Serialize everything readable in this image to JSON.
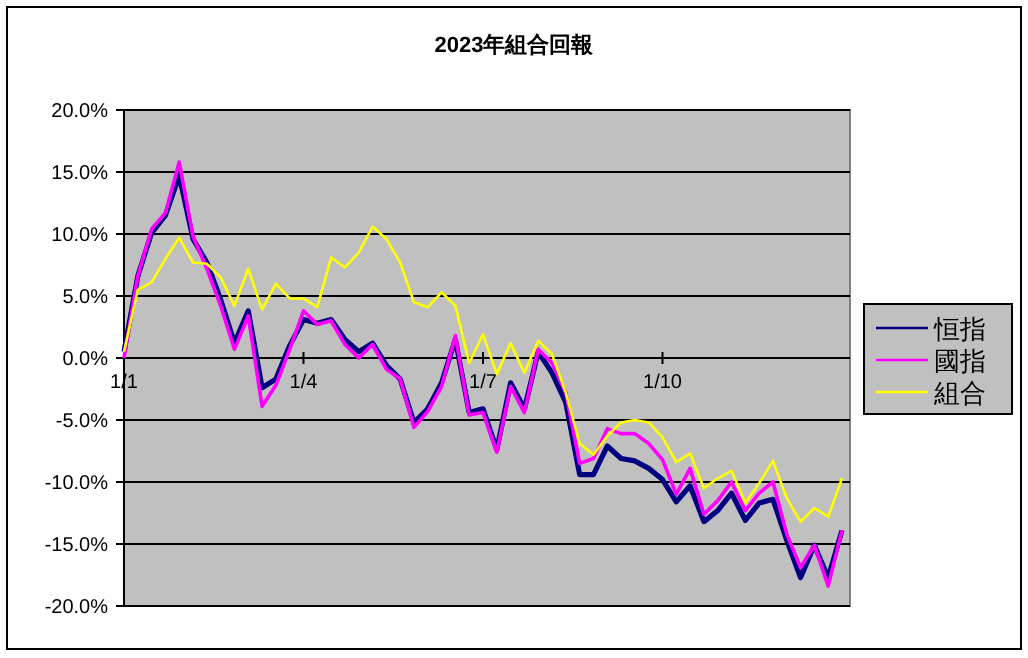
{
  "chart_data": {
    "type": "line",
    "title": "2023年組合回報",
    "categories": [
      "1/1",
      null,
      null,
      null,
      null,
      null,
      null,
      null,
      null,
      null,
      null,
      null,
      null,
      "1/4",
      null,
      null,
      null,
      null,
      null,
      null,
      null,
      null,
      null,
      null,
      null,
      null,
      "1/7",
      null,
      null,
      null,
      null,
      null,
      null,
      null,
      null,
      null,
      null,
      null,
      null,
      "1/10",
      null,
      null,
      null,
      null,
      null,
      null,
      null,
      null,
      null,
      null,
      null,
      null,
      null
    ],
    "series": [
      {
        "name": "恒指",
        "color": "#000080",
        "values": [
          0.5,
          6.6,
          10.1,
          11.5,
          14.7,
          9.6,
          7.7,
          4.7,
          1.2,
          3.8,
          -2.4,
          -1.7,
          1.0,
          3.1,
          2.8,
          3.1,
          1.5,
          0.5,
          1.2,
          -0.6,
          -1.7,
          -5.2,
          -4.1,
          -2.0,
          1.5,
          -4.4,
          -4.1,
          -7.4,
          -2.0,
          -4.1,
          0.5,
          -1.2,
          -3.6,
          -9.4,
          -9.4,
          -7.1,
          -8.1,
          -8.3,
          -8.9,
          -9.8,
          -11.6,
          -10.3,
          -13.2,
          -12.3,
          -10.9,
          -13.1,
          -11.7,
          -11.4,
          -14.7,
          -17.7,
          -15.1,
          -17.7,
          -13.9
        ]
      },
      {
        "name": "國指",
        "color": "#ff00ff",
        "values": [
          0,
          6.6,
          10.4,
          11.7,
          15.8,
          9.8,
          7.2,
          4.2,
          0.7,
          3.4,
          -3.9,
          -2.2,
          0.7,
          3.8,
          2.7,
          3.0,
          1.1,
          0,
          1.1,
          -0.9,
          -1.7,
          -5.6,
          -4.3,
          -2.3,
          1.8,
          -4.6,
          -4.4,
          -7.6,
          -2.3,
          -4.4,
          0.7,
          -0.4,
          -2.8,
          -8.5,
          -8.1,
          -5.7,
          -6.1,
          -6.1,
          -6.9,
          -8.2,
          -11.0,
          -8.9,
          -12.6,
          -11.5,
          -10.0,
          -12.3,
          -10.9,
          -10.0,
          -14.2,
          -16.9,
          -15.1,
          -18.4,
          -13.9
        ]
      },
      {
        "name": "組合",
        "color": "#ffff00",
        "values": [
          0.5,
          5.5,
          6.1,
          8.0,
          9.7,
          7.7,
          7.6,
          6.5,
          4.2,
          7.2,
          3.9,
          6.0,
          4.8,
          4.8,
          4.1,
          8.1,
          7.3,
          8.5,
          10.6,
          9.6,
          7.7,
          4.5,
          4.1,
          5.3,
          4.2,
          -0.4,
          1.9,
          -1.3,
          1.2,
          -1.2,
          1.4,
          0.3,
          -2.8,
          -6.9,
          -7.8,
          -6.3,
          -5.2,
          -5.0,
          -5.2,
          -6.4,
          -8.4,
          -7.7,
          -10.5,
          -9.7,
          -9.1,
          -11.7,
          -10.1,
          -8.3,
          -11.3,
          -13.2,
          -12.1,
          -12.8,
          -9.7
        ]
      }
    ],
    "ylim": [
      -20,
      20
    ],
    "yticks": [
      {
        "value": -20,
        "label": "-20.0%"
      },
      {
        "value": -15,
        "label": "-15.0%"
      },
      {
        "value": -10,
        "label": "-10.0%"
      },
      {
        "value": -5,
        "label": "-5.0%"
      },
      {
        "value": 0,
        "label": "0.0%"
      },
      {
        "value": 5,
        "label": "5.0%"
      },
      {
        "value": 10,
        "label": "10.0%"
      },
      {
        "value": 15,
        "label": "15.0%"
      },
      {
        "value": 20,
        "label": "20.0%"
      }
    ],
    "grid": "y",
    "legend": "right",
    "marker": "none",
    "line_style": "solid"
  }
}
